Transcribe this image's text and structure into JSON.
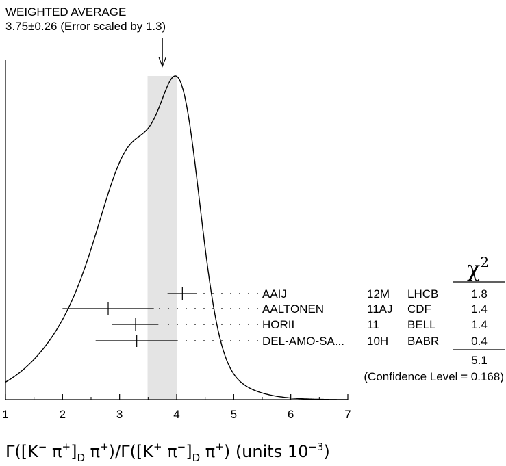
{
  "chart_data": {
    "type": "ideogram",
    "title_line1": "WEIGHTED AVERAGE",
    "title_line2": "3.75±0.26 (Error scaled by 1.3)",
    "average": 3.75,
    "average_error": 0.26,
    "error_scale": 1.3,
    "xlim": [
      1,
      7
    ],
    "xticks": [
      1,
      2,
      3,
      4,
      5,
      6,
      7
    ],
    "xlabel": {
      "gamma1": "Γ",
      "open1": "([K",
      "sup1": "−",
      "pi1": " π",
      "sup2": "+",
      "close1": "]",
      "sub1": "D",
      "pi2": " π",
      "sup3": "+",
      "close2": ")",
      "slash": "/",
      "gamma2": "Γ",
      "open2": "([K",
      "sup4": "+",
      "pi3": " π",
      "sup5": "−",
      "close3": "]",
      "sub2": "D",
      "pi4": " π",
      "sup6": "+",
      "close4": ")",
      "units": " (units 10",
      "units_exp": "−3",
      "units_close": ")"
    },
    "chi2_symbol": "χ",
    "chi2_exp": "2",
    "measurements": [
      {
        "name": "AAIJ",
        "ref": "12M",
        "exp": "LHCB",
        "chi2": "1.8",
        "value": 4.1,
        "low": 3.84,
        "high": 4.35
      },
      {
        "name": "AALTONEN",
        "ref": "11AJ",
        "exp": "CDF",
        "chi2": "1.4",
        "value": 2.8,
        "low": 2.0,
        "high": 3.6
      },
      {
        "name": "HORII",
        "ref": "11",
        "exp": "BELL",
        "chi2": "1.4",
        "value": 3.28,
        "low": 2.87,
        "high": 3.68
      },
      {
        "name": "DEL-AMO-SA...",
        "ref": "10H",
        "exp": "BABR",
        "chi2": "0.4",
        "value": 3.3,
        "low": 2.58,
        "high": 4.02
      }
    ],
    "chi2_total": "5.1",
    "confidence_level": "(Confidence Level = 0.168)"
  }
}
